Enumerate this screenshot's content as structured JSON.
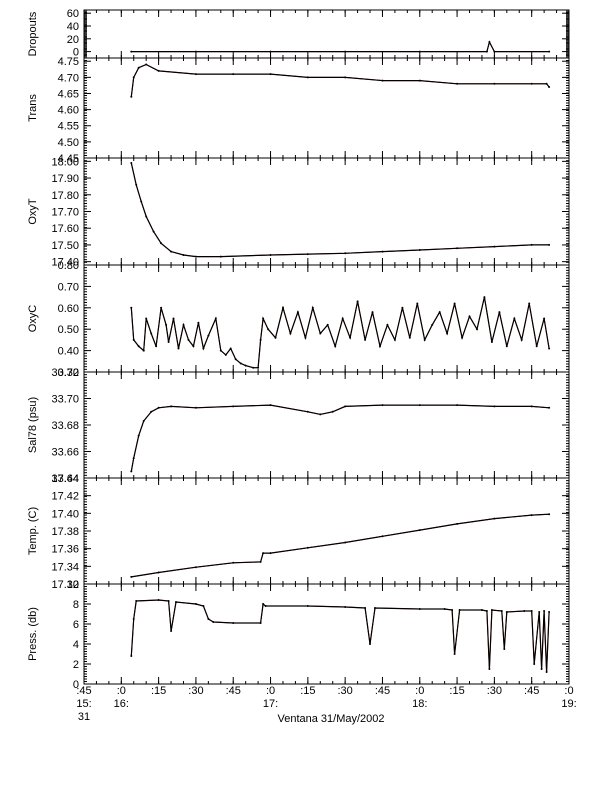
{
  "chart_data": {
    "type": "line",
    "xlabel": "Ventana 31/May/2002",
    "colors": {
      "series": "#000000",
      "raw": "#cc0000",
      "axis": "#000000"
    },
    "x_range": [
      "15:45",
      "19:00"
    ],
    "x_ticks": [
      {
        "time": "15:45",
        "label": ":45",
        "sub1": "15:",
        "sub2": "31"
      },
      {
        "time": "16:00",
        "label": ":0",
        "sub1": "16:",
        "sub2": ""
      },
      {
        "time": "16:15",
        "label": ":15",
        "sub1": "",
        "sub2": ""
      },
      {
        "time": "16:30",
        "label": ":30",
        "sub1": "",
        "sub2": ""
      },
      {
        "time": "16:45",
        "label": ":45",
        "sub1": "",
        "sub2": ""
      },
      {
        "time": "17:00",
        "label": ":0",
        "sub1": "17:",
        "sub2": ""
      },
      {
        "time": "17:15",
        "label": ":15",
        "sub1": "",
        "sub2": ""
      },
      {
        "time": "17:30",
        "label": ":30",
        "sub1": "",
        "sub2": ""
      },
      {
        "time": "17:45",
        "label": ":45",
        "sub1": "",
        "sub2": ""
      },
      {
        "time": "18:00",
        "label": ":0",
        "sub1": "18:",
        "sub2": ""
      },
      {
        "time": "18:15",
        "label": ":15",
        "sub1": "",
        "sub2": ""
      },
      {
        "time": "18:30",
        "label": ":30",
        "sub1": "",
        "sub2": ""
      },
      {
        "time": "18:45",
        "label": ":45",
        "sub1": "",
        "sub2": ""
      },
      {
        "time": "19:00",
        "label": ":0",
        "sub1": "19:",
        "sub2": ""
      }
    ],
    "panels": [
      {
        "ylabel": "Dropouts",
        "ylim": [
          -10,
          65
        ],
        "yticks": [
          0,
          20,
          40,
          60
        ],
        "ytick_labels": [
          "0",
          "20",
          "40",
          "60"
        ],
        "series": [
          {
            "x": [
              "16:04",
              "16:30",
              "17:00",
              "17:30",
              "18:00",
              "18:27",
              "18:28",
              "18:30",
              "18:52"
            ],
            "y": [
              0,
              0,
              0,
              0,
              0,
              0,
              15,
              0,
              0
            ]
          }
        ]
      },
      {
        "ylabel": "Trans",
        "ylim": [
          4.45,
          4.76
        ],
        "yticks": [
          4.45,
          4.5,
          4.55,
          4.6,
          4.65,
          4.7,
          4.75
        ],
        "ytick_labels": [
          "4.45",
          "4.50",
          "4.55",
          "4.60",
          "4.65",
          "4.70",
          "4.75"
        ],
        "series": [
          {
            "x": [
              "16:04",
              "16:05",
              "16:07",
              "16:10",
              "16:15",
              "16:30",
              "16:45",
              "17:00",
              "17:15",
              "17:30",
              "17:45",
              "18:00",
              "18:15",
              "18:30",
              "18:45",
              "18:51",
              "18:52"
            ],
            "y": [
              4.64,
              4.7,
              4.73,
              4.74,
              4.72,
              4.71,
              4.71,
              4.71,
              4.7,
              4.7,
              4.69,
              4.69,
              4.68,
              4.68,
              4.68,
              4.68,
              4.67
            ]
          }
        ]
      },
      {
        "ylabel": "OxyT",
        "ylim": [
          17.38,
          18.02
        ],
        "yticks": [
          17.4,
          17.5,
          17.6,
          17.7,
          17.8,
          17.9,
          18.0
        ],
        "ytick_labels": [
          "17.40",
          "17.50",
          "17.60",
          "17.70",
          "17.80",
          "17.90",
          "18.00"
        ],
        "series": [
          {
            "x": [
              "16:04",
              "16:06",
              "16:08",
              "16:10",
              "16:13",
              "16:16",
              "16:20",
              "16:25",
              "16:30",
              "16:40",
              "17:00",
              "17:15",
              "17:30",
              "17:45",
              "18:00",
              "18:15",
              "18:30",
              "18:45",
              "18:52"
            ],
            "y": [
              17.99,
              17.86,
              17.76,
              17.67,
              17.58,
              17.51,
              17.46,
              17.44,
              17.43,
              17.43,
              17.44,
              17.445,
              17.45,
              17.46,
              17.47,
              17.48,
              17.49,
              17.5,
              17.5
            ]
          }
        ]
      },
      {
        "ylabel": "OxyC",
        "ylim": [
          0.3,
          0.8
        ],
        "yticks": [
          0.3,
          0.4,
          0.5,
          0.6,
          0.7,
          0.8
        ],
        "ytick_labels": [
          "0.30",
          "0.40",
          "0.50",
          "0.60",
          "0.70",
          "0.80"
        ],
        "series": [
          {
            "x": [
              "16:04",
              "16:05",
              "16:07",
              "16:09",
              "16:10",
              "16:12",
              "16:14",
              "16:16",
              "16:18",
              "16:19",
              "16:21",
              "16:23",
              "16:25",
              "16:27",
              "16:29",
              "16:31",
              "16:33",
              "16:35",
              "16:38",
              "16:40",
              "16:42",
              "16:44",
              "16:46",
              "16:48",
              "16:50",
              "16:53",
              "16:55",
              "16:56",
              "16:57",
              "16:59",
              "17:02",
              "17:05",
              "17:08",
              "17:11",
              "17:14",
              "17:17",
              "17:20",
              "17:23",
              "17:26",
              "17:29",
              "17:32",
              "17:35",
              "17:38",
              "17:41",
              "17:44",
              "17:47",
              "17:50",
              "17:53",
              "17:56",
              "17:59",
              "18:02",
              "18:05",
              "18:08",
              "18:11",
              "18:14",
              "18:17",
              "18:20",
              "18:23",
              "18:26",
              "18:29",
              "18:32",
              "18:35",
              "18:38",
              "18:41",
              "18:44",
              "18:47",
              "18:50",
              "18:52"
            ],
            "y": [
              0.6,
              0.45,
              0.42,
              0.4,
              0.55,
              0.48,
              0.42,
              0.6,
              0.52,
              0.44,
              0.55,
              0.41,
              0.52,
              0.45,
              0.42,
              0.53,
              0.41,
              0.47,
              0.55,
              0.4,
              0.38,
              0.41,
              0.36,
              0.34,
              0.33,
              0.32,
              0.32,
              0.45,
              0.55,
              0.5,
              0.46,
              0.6,
              0.48,
              0.58,
              0.46,
              0.6,
              0.48,
              0.52,
              0.42,
              0.55,
              0.46,
              0.63,
              0.45,
              0.58,
              0.42,
              0.52,
              0.45,
              0.6,
              0.46,
              0.62,
              0.45,
              0.52,
              0.58,
              0.48,
              0.62,
              0.46,
              0.56,
              0.5,
              0.65,
              0.44,
              0.58,
              0.42,
              0.55,
              0.45,
              0.62,
              0.42,
              0.55,
              0.41
            ]
          }
        ]
      },
      {
        "ylabel": "Sal78 (psu)",
        "ylim": [
          33.64,
          33.72
        ],
        "yticks": [
          33.64,
          33.66,
          33.68,
          33.7,
          33.72
        ],
        "ytick_labels": [
          "33.64",
          "33.66",
          "33.68",
          "33.70",
          "33.72"
        ],
        "series": [
          {
            "x": [
              "16:04",
              "16:05",
              "16:07",
              "16:09",
              "16:12",
              "16:15",
              "16:20",
              "16:30",
              "16:45",
              "17:00",
              "17:15",
              "17:20",
              "17:25",
              "17:30",
              "17:45",
              "18:00",
              "18:15",
              "18:30",
              "18:45",
              "18:52"
            ],
            "y": [
              33.645,
              33.655,
              33.672,
              33.683,
              33.69,
              33.693,
              33.694,
              33.693,
              33.694,
              33.695,
              33.69,
              33.688,
              33.69,
              33.694,
              33.695,
              33.695,
              33.695,
              33.694,
              33.694,
              33.693
            ]
          }
        ]
      },
      {
        "ylabel": "Temp. (C)",
        "ylim": [
          17.32,
          17.44
        ],
        "yticks": [
          17.32,
          17.34,
          17.36,
          17.38,
          17.4,
          17.42,
          17.44
        ],
        "ytick_labels": [
          "17.32",
          "17.34",
          "17.36",
          "17.38",
          "17.40",
          "17.42",
          "17.44"
        ],
        "series": [
          {
            "x": [
              "16:04",
              "16:15",
              "16:30",
              "16:45",
              "16:56",
              "16:57",
              "17:00",
              "17:15",
              "17:30",
              "17:45",
              "18:00",
              "18:15",
              "18:30",
              "18:45",
              "18:52"
            ],
            "y": [
              17.328,
              17.333,
              17.339,
              17.344,
              17.345,
              17.355,
              17.355,
              17.361,
              17.367,
              17.374,
              17.381,
              17.388,
              17.394,
              17.398,
              17.399
            ]
          }
        ]
      },
      {
        "ylabel": "Press. (db)",
        "ylim": [
          0,
          10
        ],
        "yticks": [
          0,
          2,
          4,
          6,
          8,
          10
        ],
        "ytick_labels": [
          "0",
          "2",
          "4",
          "6",
          "8",
          "10"
        ],
        "series": [
          {
            "x": [
              "16:04",
              "16:05",
              "16:06",
              "16:15",
              "16:19",
              "16:20",
              "16:22",
              "16:30",
              "16:33",
              "16:35",
              "16:37",
              "16:45",
              "16:56",
              "16:57",
              "16:58",
              "17:15",
              "17:30",
              "17:38",
              "17:40",
              "17:42",
              "18:00",
              "18:10",
              "18:13",
              "18:14",
              "18:16",
              "18:25",
              "18:27",
              "18:28",
              "18:29",
              "18:33",
              "18:34",
              "18:35",
              "18:42",
              "18:45",
              "18:46",
              "18:48",
              "18:49",
              "18:50",
              "18:51",
              "18:52"
            ],
            "y": [
              2.8,
              6.5,
              8.3,
              8.4,
              8.3,
              5.3,
              8.2,
              8.0,
              7.8,
              6.5,
              6.2,
              6.1,
              6.1,
              8.0,
              7.8,
              7.8,
              7.7,
              7.6,
              4.0,
              7.6,
              7.5,
              7.5,
              7.4,
              3.0,
              7.4,
              7.4,
              7.3,
              1.5,
              7.4,
              7.3,
              3.5,
              7.2,
              7.3,
              7.3,
              2.0,
              7.2,
              1.5,
              7.3,
              1.2,
              7.2
            ]
          }
        ]
      }
    ]
  }
}
